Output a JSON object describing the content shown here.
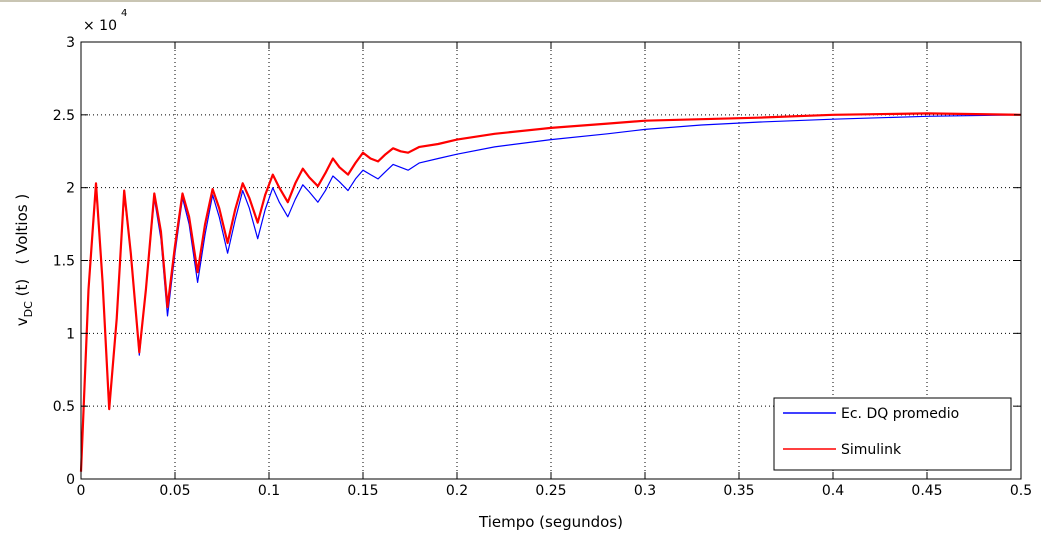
{
  "chart_data": {
    "type": "line",
    "xlabel": "Tiempo (segundos)",
    "ylabel": "v_DC (t)   ( Voltios )",
    "ylabel_parts": {
      "v": "v",
      "sub": "DC",
      "rest": " (t)   ( Voltios )"
    },
    "y_exponent": {
      "base": "× 10",
      "power": "4"
    },
    "xlim": [
      0,
      0.5
    ],
    "ylim": [
      0,
      3
    ],
    "y_scale_factor": 10000,
    "grid": true,
    "grid_style": "dotted",
    "legend_position": "bottom-right",
    "x_ticks": [
      0,
      0.05,
      0.1,
      0.15,
      0.2,
      0.25,
      0.3,
      0.35,
      0.4,
      0.45,
      0.5
    ],
    "x_tick_labels": [
      "0",
      "0.05",
      "0.1",
      "0.15",
      "0.2",
      "0.25",
      "0.3",
      "0.35",
      "0.4",
      "0.45",
      "0.5"
    ],
    "y_ticks": [
      0,
      0.5,
      1,
      1.5,
      2,
      2.5,
      3
    ],
    "y_tick_labels": [
      "0",
      "0.5",
      "1",
      "1.5",
      "2",
      "2.5",
      "3"
    ],
    "series": [
      {
        "name": "Ec. DQ promedio",
        "color": "#0000ff",
        "points": [
          [
            0,
            0.05
          ],
          [
            0.004,
            1.3
          ],
          [
            0.008,
            2.0
          ],
          [
            0.0115,
            1.35
          ],
          [
            0.015,
            0.5
          ],
          [
            0.019,
            1.1
          ],
          [
            0.023,
            1.95
          ],
          [
            0.0265,
            1.55
          ],
          [
            0.031,
            0.85
          ],
          [
            0.0345,
            1.3
          ],
          [
            0.039,
            1.93
          ],
          [
            0.0425,
            1.65
          ],
          [
            0.046,
            1.12
          ],
          [
            0.05,
            1.55
          ],
          [
            0.054,
            1.93
          ],
          [
            0.0575,
            1.75
          ],
          [
            0.062,
            1.35
          ],
          [
            0.066,
            1.68
          ],
          [
            0.07,
            1.95
          ],
          [
            0.0735,
            1.8
          ],
          [
            0.078,
            1.55
          ],
          [
            0.082,
            1.78
          ],
          [
            0.086,
            1.98
          ],
          [
            0.0895,
            1.86
          ],
          [
            0.094,
            1.65
          ],
          [
            0.098,
            1.85
          ],
          [
            0.102,
            2.0
          ],
          [
            0.1055,
            1.9
          ],
          [
            0.11,
            1.8
          ],
          [
            0.114,
            1.92
          ],
          [
            0.118,
            2.02
          ],
          [
            0.1215,
            1.97
          ],
          [
            0.126,
            1.9
          ],
          [
            0.13,
            1.98
          ],
          [
            0.134,
            2.08
          ],
          [
            0.1375,
            2.04
          ],
          [
            0.142,
            1.98
          ],
          [
            0.146,
            2.06
          ],
          [
            0.15,
            2.12
          ],
          [
            0.154,
            2.09
          ],
          [
            0.158,
            2.06
          ],
          [
            0.162,
            2.11
          ],
          [
            0.166,
            2.16
          ],
          [
            0.17,
            2.14
          ],
          [
            0.174,
            2.12
          ],
          [
            0.18,
            2.17
          ],
          [
            0.19,
            2.2
          ],
          [
            0.2,
            2.23
          ],
          [
            0.22,
            2.28
          ],
          [
            0.25,
            2.33
          ],
          [
            0.28,
            2.37
          ],
          [
            0.3,
            2.4
          ],
          [
            0.33,
            2.43
          ],
          [
            0.36,
            2.45
          ],
          [
            0.4,
            2.47
          ],
          [
            0.45,
            2.49
          ],
          [
            0.5,
            2.5
          ]
        ]
      },
      {
        "name": "Simulink",
        "color": "#ff0000",
        "points": [
          [
            0,
            0.05
          ],
          [
            0.004,
            1.3
          ],
          [
            0.008,
            2.03
          ],
          [
            0.0115,
            1.35
          ],
          [
            0.015,
            0.48
          ],
          [
            0.019,
            1.1
          ],
          [
            0.023,
            1.98
          ],
          [
            0.0265,
            1.55
          ],
          [
            0.031,
            0.87
          ],
          [
            0.0345,
            1.3
          ],
          [
            0.039,
            1.96
          ],
          [
            0.0425,
            1.7
          ],
          [
            0.046,
            1.18
          ],
          [
            0.05,
            1.6
          ],
          [
            0.054,
            1.96
          ],
          [
            0.0575,
            1.8
          ],
          [
            0.062,
            1.42
          ],
          [
            0.066,
            1.75
          ],
          [
            0.07,
            1.99
          ],
          [
            0.0735,
            1.86
          ],
          [
            0.078,
            1.62
          ],
          [
            0.082,
            1.85
          ],
          [
            0.086,
            2.03
          ],
          [
            0.0895,
            1.93
          ],
          [
            0.094,
            1.76
          ],
          [
            0.098,
            1.95
          ],
          [
            0.102,
            2.09
          ],
          [
            0.1055,
            2.0
          ],
          [
            0.11,
            1.9
          ],
          [
            0.114,
            2.03
          ],
          [
            0.118,
            2.13
          ],
          [
            0.1215,
            2.07
          ],
          [
            0.126,
            2.01
          ],
          [
            0.13,
            2.1
          ],
          [
            0.134,
            2.2
          ],
          [
            0.1375,
            2.14
          ],
          [
            0.142,
            2.09
          ],
          [
            0.146,
            2.17
          ],
          [
            0.15,
            2.24
          ],
          [
            0.154,
            2.2
          ],
          [
            0.158,
            2.18
          ],
          [
            0.162,
            2.23
          ],
          [
            0.166,
            2.27
          ],
          [
            0.17,
            2.25
          ],
          [
            0.174,
            2.24
          ],
          [
            0.18,
            2.28
          ],
          [
            0.19,
            2.3
          ],
          [
            0.2,
            2.33
          ],
          [
            0.22,
            2.37
          ],
          [
            0.25,
            2.41
          ],
          [
            0.28,
            2.44
          ],
          [
            0.3,
            2.46
          ],
          [
            0.33,
            2.47
          ],
          [
            0.36,
            2.48
          ],
          [
            0.4,
            2.5
          ],
          [
            0.45,
            2.51
          ],
          [
            0.5,
            2.5
          ]
        ]
      }
    ]
  }
}
